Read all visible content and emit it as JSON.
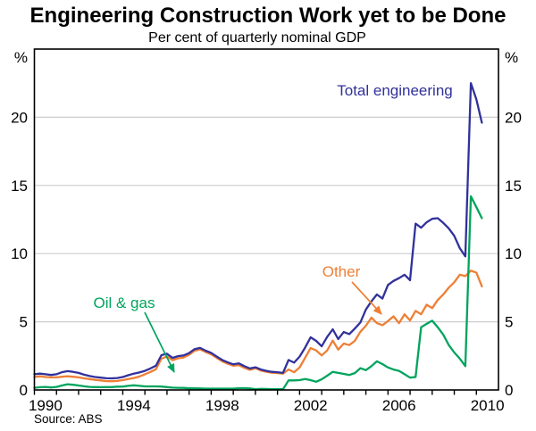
{
  "header": {
    "title": "Engineering Construction Work yet to be Done",
    "subtitle": "Per cent of quarterly nominal GDP"
  },
  "footer": {
    "source": "Source: ABS"
  },
  "chart_data": {
    "type": "line",
    "title": "Engineering Construction Work yet to be Done",
    "subtitle": "Per cent of quarterly nominal GDP",
    "unit_left": "%",
    "unit_right": "%",
    "x_start": 1990.0,
    "x_step": 0.25,
    "x_axis": {
      "min": 1990.0,
      "max": 2011.0,
      "tick_interval_years": 1,
      "label_years": [
        1990,
        1994,
        1998,
        2002,
        2006,
        2010
      ]
    },
    "y_axis": {
      "min": 0,
      "max": 25,
      "ticks": [
        0,
        5,
        10,
        15,
        20
      ],
      "gridlines": [
        5,
        10,
        15,
        20
      ],
      "grid_color": "#cccccc"
    },
    "series": [
      {
        "name": "Total engineering",
        "color": "#31319C",
        "values": [
          1.15,
          1.2,
          1.15,
          1.1,
          1.15,
          1.3,
          1.38,
          1.33,
          1.25,
          1.12,
          1.02,
          0.95,
          0.9,
          0.86,
          0.85,
          0.88,
          0.95,
          1.08,
          1.2,
          1.28,
          1.4,
          1.58,
          1.78,
          2.55,
          2.66,
          2.35,
          2.48,
          2.53,
          2.7,
          3.0,
          3.08,
          2.88,
          2.72,
          2.45,
          2.2,
          2.02,
          1.88,
          1.95,
          1.75,
          1.58,
          1.66,
          1.5,
          1.4,
          1.33,
          1.3,
          1.25,
          2.2,
          2.0,
          2.45,
          3.1,
          3.86,
          3.6,
          3.2,
          3.9,
          4.45,
          3.73,
          4.25,
          4.1,
          4.5,
          4.95,
          5.9,
          6.5,
          7.0,
          6.7,
          7.7,
          8.0,
          8.2,
          8.45,
          8.05,
          12.2,
          11.9,
          12.3,
          12.55,
          12.6,
          12.25,
          11.85,
          11.3,
          10.4,
          9.8,
          22.5,
          21.3,
          19.6
        ]
      },
      {
        "name": "Other",
        "color": "#EE7F35",
        "values": [
          0.95,
          1.0,
          0.95,
          0.92,
          0.92,
          0.97,
          1.0,
          0.97,
          0.92,
          0.85,
          0.8,
          0.74,
          0.7,
          0.65,
          0.64,
          0.66,
          0.72,
          0.8,
          0.88,
          0.98,
          1.15,
          1.32,
          1.52,
          2.3,
          2.45,
          2.18,
          2.32,
          2.38,
          2.58,
          2.88,
          2.97,
          2.78,
          2.62,
          2.35,
          2.1,
          1.92,
          1.78,
          1.82,
          1.62,
          1.47,
          1.6,
          1.42,
          1.33,
          1.26,
          1.24,
          1.2,
          1.5,
          1.3,
          1.65,
          2.35,
          3.07,
          2.9,
          2.53,
          2.9,
          3.62,
          2.96,
          3.4,
          3.29,
          3.6,
          4.27,
          4.71,
          5.3,
          4.9,
          4.75,
          5.05,
          5.4,
          4.9,
          5.55,
          5.1,
          5.8,
          5.55,
          6.25,
          6.0,
          6.6,
          7.0,
          7.5,
          7.9,
          8.45,
          8.35,
          8.75,
          8.6,
          7.6
        ]
      },
      {
        "name": "Oil & gas",
        "color": "#00A45C",
        "values": [
          0.16,
          0.2,
          0.22,
          0.18,
          0.22,
          0.33,
          0.42,
          0.38,
          0.33,
          0.27,
          0.22,
          0.21,
          0.2,
          0.21,
          0.21,
          0.24,
          0.25,
          0.3,
          0.34,
          0.3,
          0.26,
          0.26,
          0.26,
          0.25,
          0.21,
          0.17,
          0.16,
          0.15,
          0.12,
          0.12,
          0.11,
          0.1,
          0.1,
          0.1,
          0.1,
          0.1,
          0.1,
          0.13,
          0.13,
          0.11,
          0.06,
          0.08,
          0.07,
          0.06,
          0.06,
          0.05,
          0.7,
          0.7,
          0.72,
          0.8,
          0.72,
          0.6,
          0.78,
          1.05,
          1.33,
          1.25,
          1.18,
          1.1,
          1.24,
          1.6,
          1.45,
          1.75,
          2.1,
          1.9,
          1.65,
          1.5,
          1.4,
          1.15,
          0.9,
          0.95,
          4.6,
          4.85,
          5.08,
          4.6,
          4.05,
          3.3,
          2.75,
          2.3,
          1.75,
          14.2,
          13.4,
          12.6
        ]
      }
    ],
    "annotations": [
      {
        "text": "Total engineering",
        "color": "#31319C",
        "arrow": false
      },
      {
        "text": "Other",
        "color": "#EE7F35",
        "arrow": true
      },
      {
        "text": "Oil & gas",
        "color": "#00A45C",
        "arrow": true
      }
    ],
    "legend_position": "inline-labels",
    "grid": true
  }
}
